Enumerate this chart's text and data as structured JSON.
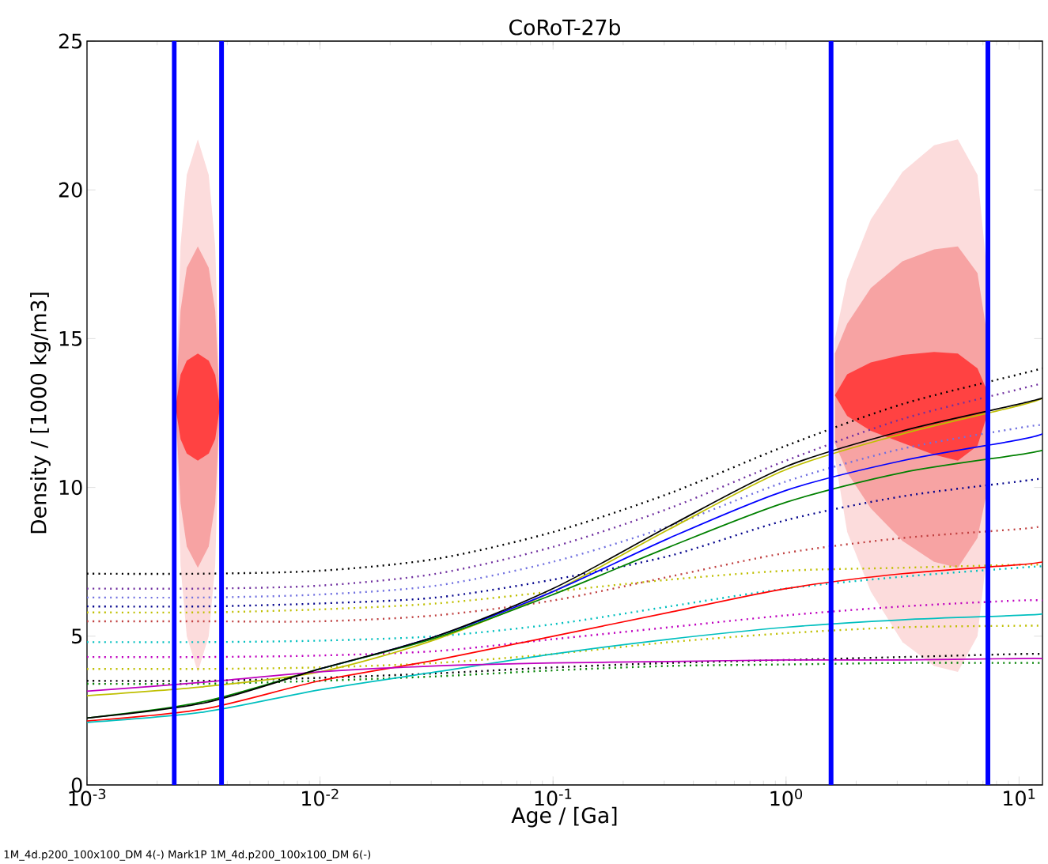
{
  "chart_data": {
    "type": "line",
    "title": "CoRoT-27b",
    "xlabel": "Age / [Ga]",
    "ylabel": "Density / [1000 kg/m3]",
    "log": "x",
    "xlim": [
      0.001,
      12.6
    ],
    "ylim": [
      0,
      25
    ],
    "xticks": [
      {
        "value": 0.001,
        "label": "10$^{-3}$"
      },
      {
        "value": 0.01,
        "label": "10$^{-2}$"
      },
      {
        "value": 0.1,
        "label": "10$^{-1}$"
      },
      {
        "value": 1,
        "label": "10$^{0}$"
      },
      {
        "value": 10,
        "label": "10$^{1}$"
      }
    ],
    "yticks": [
      0,
      5,
      10,
      15,
      20,
      25
    ],
    "x": [
      0.001,
      0.00316,
      0.01,
      0.0316,
      0.1,
      0.316,
      1,
      3.16,
      10,
      12.6
    ],
    "series": [
      {
        "color": "#fcdcdc",
        "x": [
          0.0024,
          0.00252,
          0.00268,
          0.00299,
          0.00333,
          0.00355,
          0.00372
        ],
        "values": [
          null,
          null,
          null,
          null,
          null,
          null,
          null
        ],
        "upper": [
          12.75,
          18.12,
          20.5,
          21.7,
          20.5,
          18.12,
          12.75
        ],
        "lower": [
          12.75,
          7.38,
          5.0,
          3.8,
          5.0,
          7.38,
          12.75
        ]
      },
      {
        "color": "#f7a3a3",
        "x": [
          0.0024,
          0.00252,
          0.00268,
          0.00299,
          0.00333,
          0.00355,
          0.00372
        ],
        "values": [
          null,
          null,
          null,
          null,
          null,
          null,
          null
        ],
        "upper": [
          12.7,
          15.94,
          17.38,
          18.1,
          17.38,
          15.94,
          12.7
        ],
        "lower": [
          12.7,
          9.46,
          8.02,
          7.3,
          8.02,
          9.46,
          12.7
        ]
      },
      {
        "color": "#ff4242",
        "x": [
          0.0024,
          0.00252,
          0.00268,
          0.00299,
          0.00333,
          0.00355,
          0.00372
        ],
        "values": [
          null,
          null,
          null,
          null,
          null,
          null,
          null
        ],
        "upper": [
          12.7,
          13.78,
          14.26,
          14.5,
          14.26,
          13.78,
          12.7
        ],
        "lower": [
          12.7,
          11.62,
          11.14,
          10.9,
          11.14,
          11.62,
          12.7
        ]
      },
      {
        "color": "#fcdcdc",
        "x": [
          1.62,
          1.83,
          2.31,
          3.16,
          4.32,
          5.46,
          6.63,
          7.34
        ],
        "values": [
          null,
          null,
          null,
          null,
          null,
          null,
          null,
          null
        ],
        "upper": [
          15,
          17,
          19,
          20.6,
          21.5,
          21.7,
          20.5,
          17
        ],
        "lower": [
          11,
          8.5,
          6.5,
          4.8,
          4.0,
          3.8,
          5.0,
          8
        ]
      },
      {
        "color": "#f7a3a3",
        "x": [
          1.62,
          1.83,
          2.31,
          3.16,
          4.32,
          5.46,
          6.63,
          7.34
        ],
        "values": [
          null,
          null,
          null,
          null,
          null,
          null,
          null,
          null
        ],
        "upper": [
          14.5,
          15.5,
          16.7,
          17.6,
          18.0,
          18.1,
          17.2,
          15
        ],
        "lower": [
          11.5,
          10.5,
          9.3,
          8.2,
          7.5,
          7.3,
          8.3,
          10
        ]
      },
      {
        "color": "#ff4242",
        "x": [
          1.62,
          1.83,
          2.31,
          3.16,
          4.32,
          5.46,
          6.63,
          7.34
        ],
        "values": [
          null,
          null,
          null,
          null,
          null,
          null,
          null,
          null
        ],
        "upper": [
          13.1,
          13.8,
          14.2,
          14.45,
          14.55,
          14.5,
          14.0,
          13.2
        ],
        "lower": [
          13.1,
          12.4,
          11.9,
          11.5,
          11.1,
          10.9,
          11.4,
          12.5
        ]
      },
      {
        "color": "#000000",
        "line_style": "dotted",
        "values": [
          7.1,
          7.1,
          7.2,
          7.6,
          8.5,
          9.8,
          11.4,
          12.8,
          13.8,
          14.0
        ]
      },
      {
        "color": "#7030a0",
        "line_style": "dotted",
        "values": [
          6.6,
          6.6,
          6.7,
          7.1,
          8.0,
          9.3,
          10.9,
          12.3,
          13.3,
          13.5
        ]
      },
      {
        "color": "#7070e0",
        "line_style": "dotted",
        "values": [
          6.3,
          6.3,
          6.4,
          6.7,
          7.5,
          8.7,
          10.2,
          11.3,
          12.0,
          12.1
        ]
      },
      {
        "color": "#00008b",
        "line_style": "dotted",
        "values": [
          6.0,
          6.0,
          6.1,
          6.3,
          6.9,
          7.7,
          8.9,
          9.7,
          10.2,
          10.3
        ]
      },
      {
        "color": "#bfbf00",
        "line_style": "dotted",
        "values": [
          5.8,
          5.8,
          5.9,
          6.1,
          6.5,
          6.9,
          7.2,
          7.3,
          7.4,
          7.4
        ]
      },
      {
        "color": "#c04040",
        "line_style": "dotted",
        "values": [
          5.5,
          5.5,
          5.5,
          5.7,
          6.2,
          7.0,
          7.8,
          8.3,
          8.6,
          8.7
        ]
      },
      {
        "color": "#00bfbf",
        "line_style": "dotted",
        "values": [
          4.8,
          4.8,
          4.85,
          5.0,
          5.4,
          6.0,
          6.6,
          7.0,
          7.3,
          7.35
        ]
      },
      {
        "color": "#bf00bf",
        "line_style": "dotted",
        "values": [
          4.3,
          4.3,
          4.35,
          4.5,
          4.9,
          5.3,
          5.7,
          6.0,
          6.2,
          6.2
        ]
      },
      {
        "color": "#bfbf00",
        "line_style": "dotted",
        "values": [
          3.9,
          3.9,
          3.95,
          4.1,
          4.4,
          4.8,
          5.1,
          5.3,
          5.35,
          5.35
        ]
      },
      {
        "color": "#000000",
        "line_style": "dotted",
        "values": [
          3.5,
          3.5,
          3.6,
          3.75,
          3.95,
          4.1,
          4.2,
          4.3,
          4.4,
          4.4
        ]
      },
      {
        "color": "#008000",
        "line_style": "dotted",
        "values": [
          3.4,
          3.4,
          3.5,
          3.65,
          3.85,
          4.0,
          4.05,
          4.1,
          4.1,
          4.1
        ]
      },
      {
        "color": "#bfbf00",
        "line_style": "solid",
        "values": [
          3.0,
          3.3,
          3.8,
          4.9,
          6.5,
          8.6,
          10.6,
          11.8,
          12.75,
          13.0
        ]
      },
      {
        "color": "#0000ff",
        "line_style": "solid",
        "values": [
          null,
          null,
          3.9,
          5.0,
          6.5,
          8.3,
          9.9,
          10.9,
          11.6,
          11.8
        ]
      },
      {
        "color": "#008000",
        "line_style": "solid",
        "values": [
          2.25,
          2.8,
          3.9,
          4.95,
          6.4,
          8.0,
          9.5,
          10.5,
          11.1,
          11.25
        ]
      },
      {
        "color": "#ff0000",
        "line_style": "solid",
        "values": [
          2.15,
          2.55,
          3.5,
          4.2,
          5.0,
          5.8,
          6.6,
          7.1,
          7.4,
          7.5
        ]
      },
      {
        "color": "#00bfbf",
        "line_style": "solid",
        "values": [
          2.1,
          2.45,
          3.2,
          3.8,
          4.4,
          4.9,
          5.3,
          5.55,
          5.7,
          5.75
        ]
      },
      {
        "color": "#bf00bf",
        "line_style": "solid",
        "values": [
          3.15,
          3.45,
          3.8,
          4.0,
          4.1,
          4.15,
          4.2,
          4.2,
          4.25,
          4.25
        ]
      },
      {
        "color": "#000000",
        "line_style": "solid",
        "values": [
          2.25,
          2.75,
          3.9,
          5.0,
          6.6,
          8.7,
          10.7,
          11.9,
          12.8,
          13.0
        ]
      }
    ],
    "ref_lines": [
      {
        "axis": "x",
        "value": 0.00237,
        "color": "#0000ff"
      },
      {
        "axis": "x",
        "value": 0.00378,
        "color": "#0000ff"
      },
      {
        "axis": "x",
        "value": 1.56,
        "color": "#0000ff"
      },
      {
        "axis": "x",
        "value": 7.35,
        "color": "#0000ff"
      }
    ],
    "annotations": [
      "1M_4d.p200_100x100_DM 4(-) Mark1P 1M_4d.p200_100x100_DM 6(-)"
    ]
  }
}
